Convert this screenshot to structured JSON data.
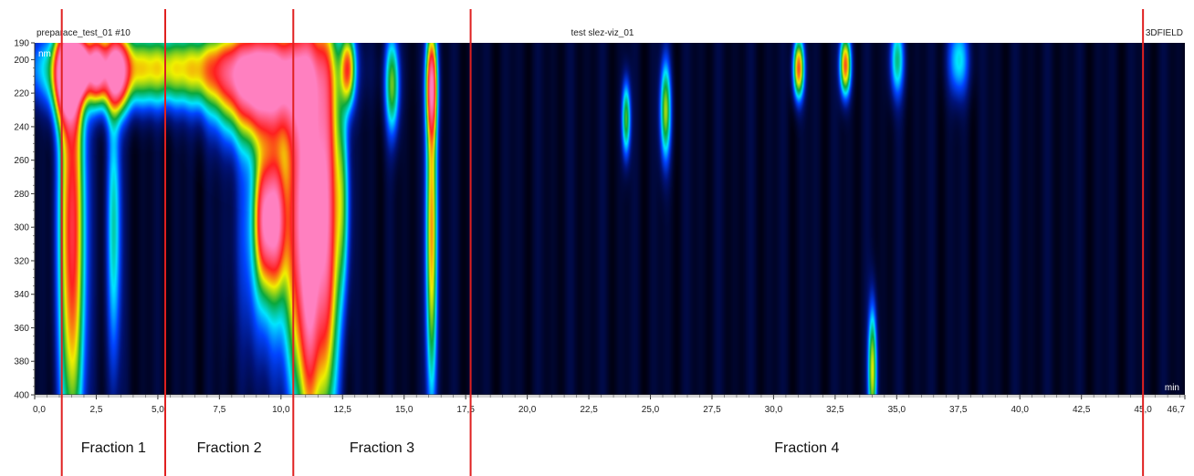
{
  "header": {
    "left_title": "preparace_test_01 #10",
    "center_title": "test slez-viz_01",
    "right_title": "3DFIELD"
  },
  "chart_data": {
    "type": "heatmap",
    "x_unit_label": "min",
    "y_unit_label": "nm",
    "xlim": [
      0,
      46.7
    ],
    "ylim": [
      190,
      400
    ],
    "x_ticks": [
      "0,0",
      "2,5",
      "5,0",
      "7,5",
      "10,0",
      "12,5",
      "15,0",
      "17,5",
      "20,0",
      "22,5",
      "25,0",
      "27,5",
      "30,0",
      "32,5",
      "35,0",
      "37,5",
      "40,0",
      "42,5",
      "45,0",
      "46,7"
    ],
    "y_ticks": [
      "190",
      "200",
      "220",
      "240",
      "260",
      "280",
      "300",
      "320",
      "340",
      "360",
      "380",
      "400"
    ],
    "colormap": [
      "#000010",
      "#00137a",
      "#0044ff",
      "#00e5ff",
      "#0aa83c",
      "#f0f000",
      "#ff2020",
      "#ff80c0"
    ],
    "intensity_blobs": [
      {
        "x": 1.3,
        "xw": 0.35,
        "y": 210,
        "yw": 18,
        "v": 1.0
      },
      {
        "x": 1.5,
        "xw": 0.35,
        "y": 300,
        "yw": 90,
        "v": 0.75
      },
      {
        "x": 1.9,
        "xw": 0.2,
        "y": 205,
        "yw": 10,
        "v": 0.75
      },
      {
        "x": 2.5,
        "xw": 0.25,
        "y": 205,
        "yw": 12,
        "v": 0.7
      },
      {
        "x": 3.3,
        "xw": 0.3,
        "y": 208,
        "yw": 15,
        "v": 0.72
      },
      {
        "x": 2.8,
        "xw": 2.0,
        "y": 205,
        "yw": 15,
        "v": 0.45
      },
      {
        "x": 3.2,
        "xw": 0.2,
        "y": 300,
        "yw": 60,
        "v": 0.3
      },
      {
        "x": 7.5,
        "xw": 2.5,
        "y": 205,
        "yw": 15,
        "v": 0.45
      },
      {
        "x": 9.3,
        "xw": 1.2,
        "y": 215,
        "yw": 22,
        "v": 0.95
      },
      {
        "x": 9.3,
        "xw": 0.25,
        "y": 295,
        "yw": 25,
        "v": 0.62
      },
      {
        "x": 9.8,
        "xw": 0.25,
        "y": 295,
        "yw": 25,
        "v": 0.62
      },
      {
        "x": 9.6,
        "xw": 0.8,
        "y": 300,
        "yw": 50,
        "v": 0.35
      },
      {
        "x": 10.8,
        "xw": 0.4,
        "y": 290,
        "yw": 80,
        "v": 0.75
      },
      {
        "x": 11.2,
        "xw": 0.25,
        "y": 310,
        "yw": 80,
        "v": 0.6
      },
      {
        "x": 11.8,
        "xw": 0.35,
        "y": 290,
        "yw": 80,
        "v": 0.95
      },
      {
        "x": 12.7,
        "xw": 0.2,
        "y": 205,
        "yw": 15,
        "v": 0.6
      },
      {
        "x": 12.5,
        "xw": 0.2,
        "y": 285,
        "yw": 40,
        "v": 0.3
      },
      {
        "x": 14.5,
        "xw": 0.2,
        "y": 215,
        "yw": 20,
        "v": 0.4
      },
      {
        "x": 16.1,
        "xw": 0.15,
        "y": 215,
        "yw": 20,
        "v": 0.75
      },
      {
        "x": 16.1,
        "xw": 0.15,
        "y": 300,
        "yw": 70,
        "v": 0.6
      },
      {
        "x": 24.0,
        "xw": 0.12,
        "y": 235,
        "yw": 15,
        "v": 0.4
      },
      {
        "x": 25.6,
        "xw": 0.15,
        "y": 230,
        "yw": 20,
        "v": 0.45
      },
      {
        "x": 31.0,
        "xw": 0.15,
        "y": 205,
        "yw": 12,
        "v": 0.65
      },
      {
        "x": 32.9,
        "xw": 0.15,
        "y": 203,
        "yw": 12,
        "v": 0.65
      },
      {
        "x": 34.0,
        "xw": 0.12,
        "y": 385,
        "yw": 25,
        "v": 0.5
      },
      {
        "x": 35.0,
        "xw": 0.2,
        "y": 200,
        "yw": 15,
        "v": 0.3
      },
      {
        "x": 37.5,
        "xw": 0.3,
        "y": 200,
        "yw": 15,
        "v": 0.25
      }
    ],
    "fraction_boundaries_min": [
      1.1,
      5.3,
      10.5,
      17.7,
      45.0
    ],
    "fractions": [
      {
        "label": "Fraction 1",
        "start": 1.1,
        "end": 5.3
      },
      {
        "label": "Fraction 2",
        "start": 5.3,
        "end": 10.5
      },
      {
        "label": "Fraction 3",
        "start": 10.5,
        "end": 17.7
      },
      {
        "label": "Fraction 4",
        "start": 17.7,
        "end": 45.0
      }
    ],
    "boundary_color": "#e02020"
  }
}
